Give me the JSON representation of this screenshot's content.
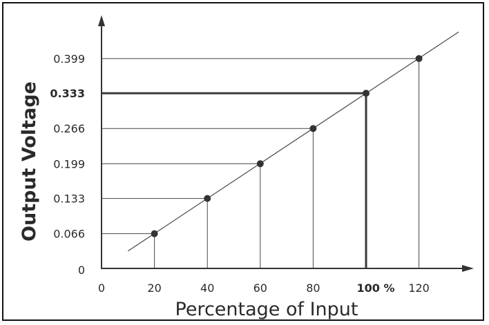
{
  "chart_data": {
    "type": "line",
    "title": "",
    "xlabel": "Percentage of Input",
    "ylabel": "Output Voltage",
    "x_ticks": [
      "0",
      "20",
      "40",
      "60",
      "80",
      "100 %",
      "120"
    ],
    "y_ticks": [
      "0",
      "0.066",
      "0.133",
      "0.199",
      "0.266",
      "0.333",
      "0.399"
    ],
    "xlim": [
      0,
      135
    ],
    "ylim": [
      0,
      0.46
    ],
    "grid": false,
    "line": {
      "x": [
        10,
        135
      ],
      "y": [
        0.033,
        0.4495
      ]
    },
    "points": [
      {
        "x": 20,
        "y": 0.066
      },
      {
        "x": 40,
        "y": 0.133
      },
      {
        "x": 60,
        "y": 0.199
      },
      {
        "x": 80,
        "y": 0.266
      },
      {
        "x": 100,
        "y": 0.333,
        "highlight": true
      },
      {
        "x": 120,
        "y": 0.399
      }
    ],
    "colors": {
      "line": "#555555",
      "point": "#333333",
      "highlight": "#3a3a3a",
      "text": "#2a2a2a"
    }
  }
}
